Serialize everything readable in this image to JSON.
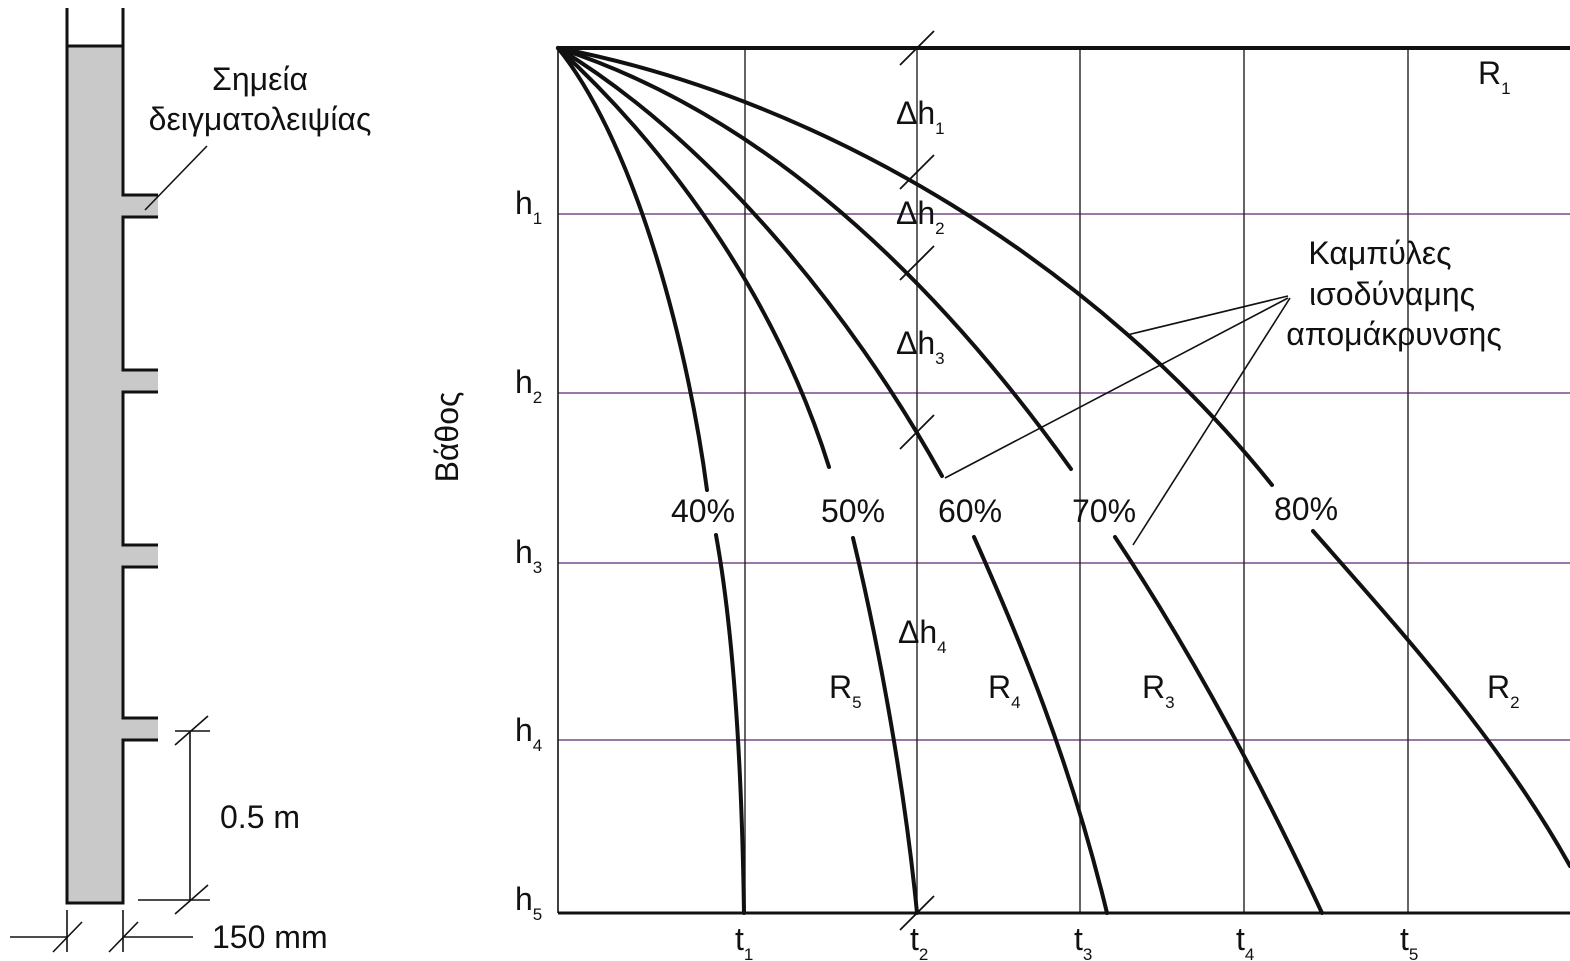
{
  "column": {
    "sampling_label_line1": "Σημεία",
    "sampling_label_line2": "δειγματολειψίας",
    "spacing": "0.5 m",
    "diameter": "150 mm"
  },
  "chart": {
    "y_axis_label": "Βάθος",
    "depths": [
      {
        "main": "h",
        "sub": "1"
      },
      {
        "main": "h",
        "sub": "2"
      },
      {
        "main": "h",
        "sub": "3"
      },
      {
        "main": "h",
        "sub": "4"
      },
      {
        "main": "h",
        "sub": "5"
      }
    ],
    "times": [
      {
        "main": "t",
        "sub": "1"
      },
      {
        "main": "t",
        "sub": "2"
      },
      {
        "main": "t",
        "sub": "3"
      },
      {
        "main": "t",
        "sub": "4"
      },
      {
        "main": "t",
        "sub": "5"
      }
    ],
    "curve_labels": [
      "40%",
      "50%",
      "60%",
      "70%",
      "80%"
    ],
    "delta_h": [
      {
        "main": "Δh",
        "sub": "1"
      },
      {
        "main": "Δh",
        "sub": "2"
      },
      {
        "main": "Δh",
        "sub": "3"
      },
      {
        "main": "Δh",
        "sub": "4"
      }
    ],
    "regions": [
      {
        "main": "R",
        "sub": "1"
      },
      {
        "main": "R",
        "sub": "2"
      },
      {
        "main": "R",
        "sub": "3"
      },
      {
        "main": "R",
        "sub": "4"
      },
      {
        "main": "R",
        "sub": "5"
      }
    ],
    "annotation_line1": "Καμπύλες",
    "annotation_line2": "ισοδύναμης",
    "annotation_line3": "απομάκρυνσης",
    "gridline_color": "#7a4a8c"
  }
}
